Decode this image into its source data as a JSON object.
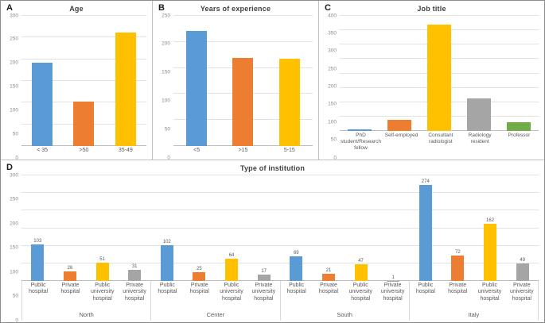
{
  "colors": {
    "blue": "#5B9BD5",
    "orange": "#ED7D31",
    "yellow": "#FFC000",
    "gray": "#A5A5A5",
    "green": "#70AD47",
    "gridline": "#e2e2e2",
    "axis": "#bdbdbd"
  },
  "chart_data": [
    {
      "type": "bar",
      "panel": "A",
      "title": "Age",
      "categories": [
        "< 35",
        ">50",
        "35-49"
      ],
      "values": [
        193,
        103,
        261
      ],
      "bar_colors": [
        "blue",
        "orange",
        "yellow"
      ],
      "ylim": [
        0,
        300
      ],
      "ytick_step": 50,
      "grid": true,
      "show_value_labels": false
    },
    {
      "type": "bar",
      "panel": "B",
      "title": "Years of experience",
      "categories": [
        "<5",
        ">15",
        "5-15"
      ],
      "values": [
        221,
        169,
        167
      ],
      "bar_colors": [
        "blue",
        "orange",
        "yellow"
      ],
      "ylim": [
        0,
        250
      ],
      "ytick_step": 50,
      "grid": true,
      "show_value_labels": false
    },
    {
      "type": "bar",
      "panel": "C",
      "title": "Job title",
      "categories": [
        "PhD student/Research fellow",
        "Self-employed",
        "Consultant radiologist",
        "Radiology resident",
        "Professor"
      ],
      "values": [
        5,
        38,
        370,
        114,
        30
      ],
      "bar_colors": [
        "blue",
        "orange",
        "yellow",
        "gray",
        "green"
      ],
      "ylim": [
        0,
        400
      ],
      "ytick_step": 50,
      "grid": true,
      "show_value_labels": false
    },
    {
      "type": "bar",
      "panel": "D",
      "title": "Type of institution",
      "categories": [
        "Public hospital",
        "Private hospital",
        "Public university hospital",
        "Private university hospital"
      ],
      "groups": [
        {
          "label": "North",
          "values": [
            103,
            26,
            51,
            31
          ]
        },
        {
          "label": "Center",
          "values": [
            102,
            25,
            64,
            17
          ]
        },
        {
          "label": "South",
          "values": [
            69,
            21,
            47,
            1
          ]
        },
        {
          "label": "Italy",
          "values": [
            274,
            72,
            162,
            49
          ]
        }
      ],
      "bar_colors": [
        "blue",
        "orange",
        "yellow",
        "gray"
      ],
      "ylim": [
        0,
        300
      ],
      "ytick_step": 50,
      "grid": true,
      "show_value_labels": true
    }
  ]
}
